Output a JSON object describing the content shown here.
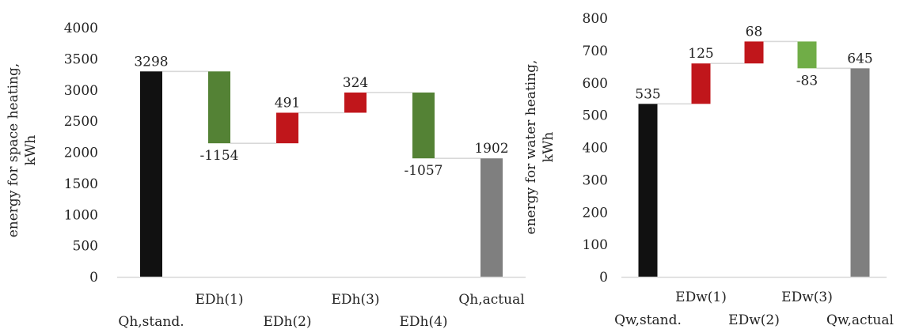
{
  "chart_data": [
    {
      "type": "bar",
      "subtype": "waterfall",
      "ylabel_lines": [
        "energy for space heating,",
        "kWh"
      ],
      "ylim": [
        0,
        4000
      ],
      "yticks": [
        "0",
        "500",
        "1000",
        "1500",
        "2000",
        "2500",
        "3000",
        "3500",
        "4000"
      ],
      "categories": [
        "Qh,stand.",
        "EDh(1)",
        "EDh(2)",
        "EDh(3)",
        "EDh(4)",
        "Qh,actual"
      ],
      "values": [
        3298,
        -1154,
        491,
        324,
        -1057,
        1902
      ],
      "value_labels": [
        "3298",
        "-1154",
        "491",
        "324",
        "-1057",
        "1902"
      ],
      "kinds": [
        "total",
        "delta",
        "delta",
        "delta",
        "delta",
        "total"
      ],
      "colors": [
        "#111111",
        "#548235",
        "#c0161b",
        "#c0161b",
        "#548235",
        "#7f7f7f"
      ],
      "grid": false
    },
    {
      "type": "bar",
      "subtype": "waterfall",
      "ylabel_lines": [
        "energy for water heating,",
        "kWh"
      ],
      "ylim": [
        0,
        800
      ],
      "yticks": [
        "0",
        "100",
        "200",
        "300",
        "400",
        "500",
        "600",
        "700",
        "800"
      ],
      "categories": [
        "Qw,stand.",
        "EDw(1)",
        "EDw(2)",
        "EDw(3)",
        "Qw,actual"
      ],
      "values": [
        535,
        125,
        68,
        -83,
        645
      ],
      "value_labels": [
        "535",
        "125",
        "68",
        "-83",
        "645"
      ],
      "kinds": [
        "total",
        "delta",
        "delta",
        "delta",
        "total"
      ],
      "colors": [
        "#111111",
        "#c0161b",
        "#c0161b",
        "#70ad47",
        "#7f7f7f"
      ],
      "grid": false
    }
  ]
}
